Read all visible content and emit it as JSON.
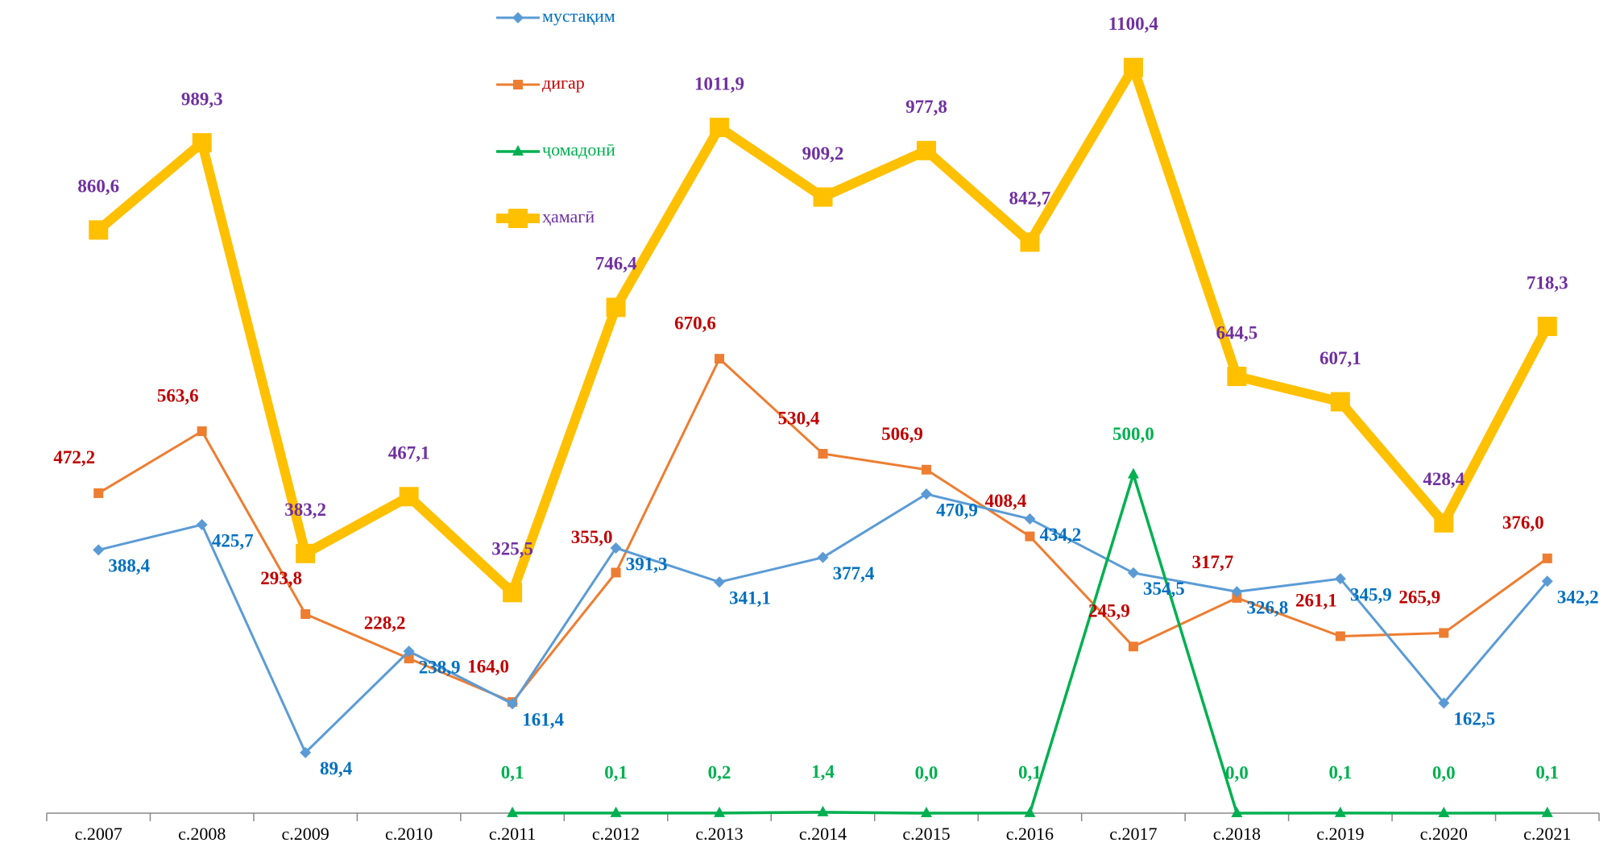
{
  "chart_data": {
    "type": "line",
    "categories": [
      "с.2007",
      "с.2008",
      "с.2009",
      "с.2010",
      "с.2011",
      "с.2012",
      "с.2013",
      "с.2014",
      "с.2015",
      "с.2016",
      "с.2017",
      "с.2018",
      "с.2019",
      "с.2020",
      "с.2021"
    ],
    "ylim": [
      0,
      1200
    ],
    "legend": "top",
    "series": [
      {
        "name": "мустақим",
        "color": "#5b9bd5",
        "label_color": "#0070c0",
        "marker": "diamond",
        "values": [
          388.4,
          425.7,
          89.4,
          238.9,
          161.4,
          391.3,
          341.1,
          377.4,
          470.9,
          434.2,
          354.5,
          326.8,
          345.9,
          162.5,
          342.2
        ],
        "value_labels": [
          "388,4",
          "425,7",
          "89,4",
          "238,9",
          "161,4",
          "391,3",
          "341,1",
          "377,4",
          "470,9",
          "434,2",
          "354,5",
          "326,8",
          "345,9",
          "162,5",
          "342,2"
        ]
      },
      {
        "name": "дигар",
        "color": "#ed7d31",
        "label_color": "#c00000",
        "marker": "square",
        "values": [
          472.2,
          563.6,
          293.8,
          228.2,
          164.0,
          355.0,
          670.6,
          530.4,
          506.9,
          408.4,
          245.9,
          317.7,
          261.1,
          265.9,
          376.0
        ],
        "value_labels": [
          "472,2",
          "563,6",
          "293,8",
          "228,2",
          "164,0",
          "355,0",
          "670,6",
          "530,4",
          "506,9",
          "408,4",
          "245,9",
          "317,7",
          "261,1",
          "265,9",
          "376,0"
        ]
      },
      {
        "name": "ҷомадонӣ",
        "color": "#00b050",
        "label_color": "#00b050",
        "marker": "triangle",
        "values": [
          null,
          null,
          null,
          null,
          0.1,
          0.1,
          0.2,
          1.4,
          0.0,
          0.1,
          500.0,
          0.0,
          0.1,
          0.0,
          0.1
        ],
        "value_labels": [
          null,
          null,
          null,
          null,
          "0,1",
          "0,1",
          "0,2",
          "1,4",
          "0,0",
          "0,1",
          "500,0",
          "0,0",
          "0,1",
          "0,0",
          "0,1"
        ]
      },
      {
        "name": "ҳамагӣ",
        "color": "#ffc000",
        "label_color": "#7030a0",
        "marker": "bigsquare",
        "values": [
          860.6,
          989.3,
          383.2,
          467.1,
          325.5,
          746.4,
          1011.9,
          909.2,
          977.8,
          842.7,
          1100.4,
          644.5,
          607.1,
          428.4,
          718.3
        ],
        "value_labels": [
          "860,6",
          "989,3",
          "383,2",
          "467,1",
          "325,5",
          "746,4",
          "1011,9",
          "909,2",
          "977,8",
          "842,7",
          "1100,4",
          "644,5",
          "607,1",
          "428,4",
          "718,3"
        ]
      }
    ]
  }
}
